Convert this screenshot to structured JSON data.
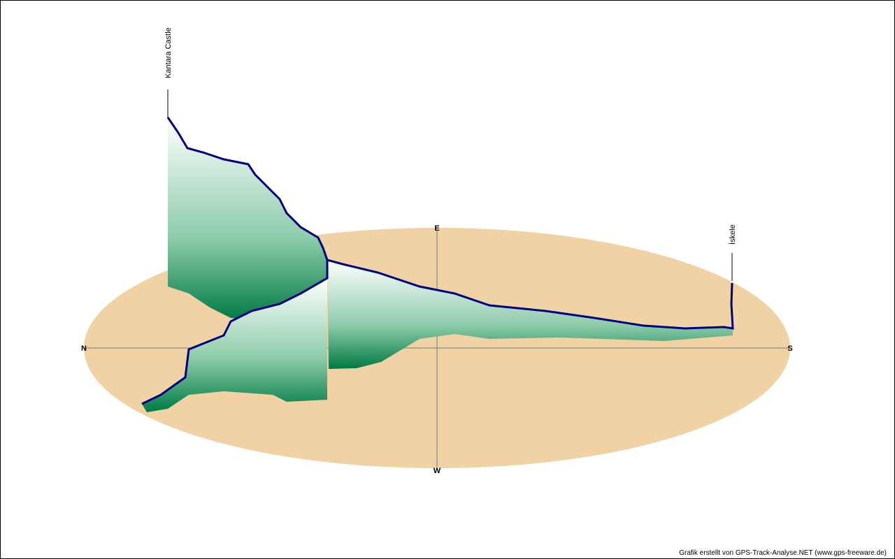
{
  "compass": {
    "north": "N",
    "east": "E",
    "south": "S",
    "west": "W"
  },
  "waypoints": [
    {
      "label": "Kantara Castle"
    },
    {
      "label": "İskele"
    }
  ],
  "credit": "Grafik erstellt von GPS-Track-Analyse.NET (www.gps-freeware.de)"
}
